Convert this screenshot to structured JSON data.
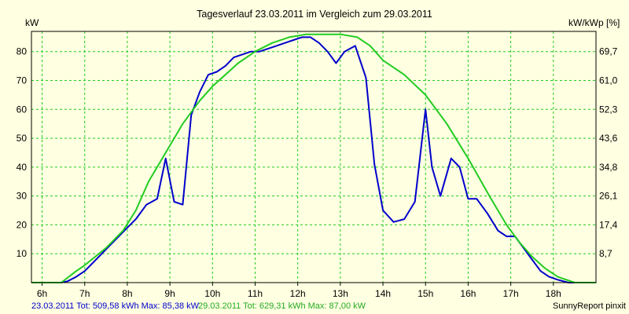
{
  "chart_data": {
    "type": "line",
    "title": "Tagesverlauf 23.03.2011 im Vergleich zum 29.03.2011",
    "ylabel_left": "kW",
    "ylabel_right": "kW/kWp [%]",
    "xlim": [
      5.75,
      19.0
    ],
    "ylim": [
      0,
      87
    ],
    "x_ticks": [
      6,
      7,
      8,
      9,
      10,
      11,
      12,
      13,
      14,
      15,
      16,
      17,
      18
    ],
    "x_tick_labels": [
      "6h",
      "7h",
      "8h",
      "9h",
      "10h",
      "11h",
      "12h",
      "13h",
      "14h",
      "15h",
      "16h",
      "17h",
      "18h"
    ],
    "y_ticks_left": [
      10,
      20,
      30,
      40,
      50,
      60,
      70,
      80
    ],
    "y_tick_labels_left": [
      "10",
      "20",
      "30",
      "40",
      "50",
      "60",
      "70",
      "80"
    ],
    "y_ticks_right": [
      8.7,
      17.4,
      26.1,
      34.8,
      43.6,
      52.3,
      61.0,
      69.7
    ],
    "y_tick_labels_right": [
      "8,7",
      "17,4",
      "26,1",
      "34,8",
      "43,6",
      "52,3",
      "61,0",
      "69,7"
    ],
    "grid": true,
    "series": [
      {
        "name": "23.03.2011",
        "color": "#0000cc",
        "x": [
          5.75,
          6.45,
          6.6,
          6.8,
          7.0,
          7.2,
          7.4,
          7.6,
          7.8,
          8.0,
          8.2,
          8.45,
          8.7,
          8.9,
          9.1,
          9.3,
          9.5,
          9.7,
          9.9,
          10.1,
          10.3,
          10.5,
          10.7,
          10.9,
          11.1,
          11.3,
          11.5,
          11.7,
          11.9,
          12.1,
          12.3,
          12.5,
          12.7,
          12.9,
          13.1,
          13.35,
          13.6,
          13.8,
          14.0,
          14.25,
          14.5,
          14.75,
          15.0,
          15.15,
          15.35,
          15.6,
          15.8,
          16.0,
          16.2,
          16.45,
          16.7,
          16.9,
          17.1,
          17.3,
          17.5,
          17.7,
          17.9,
          18.1,
          18.35,
          18.6,
          19.0
        ],
        "values": [
          0,
          0,
          0.5,
          2,
          4,
          7,
          10,
          13,
          16,
          19,
          22,
          27,
          29,
          43,
          28,
          27,
          58,
          66,
          72,
          73,
          75,
          78,
          79,
          80,
          80,
          81,
          82,
          83,
          84,
          85,
          85,
          83,
          80,
          76,
          80,
          82,
          71,
          41,
          25,
          21,
          22,
          28,
          60,
          40,
          30,
          43,
          40,
          29,
          29,
          24,
          18,
          16,
          16,
          12,
          8,
          4,
          2,
          1,
          0,
          0,
          0
        ]
      },
      {
        "name": "29.03.2011",
        "color": "#22cc22",
        "x": [
          5.75,
          6.45,
          6.8,
          7.0,
          7.5,
          7.9,
          8.2,
          8.5,
          8.9,
          9.3,
          9.7,
          10.0,
          10.3,
          10.6,
          11.0,
          11.4,
          11.8,
          12.2,
          12.6,
          13.0,
          13.4,
          13.7,
          14.0,
          14.5,
          15.0,
          15.5,
          16.0,
          16.5,
          16.9,
          17.2,
          17.5,
          17.8,
          18.1,
          18.5,
          19.0
        ],
        "values": [
          0,
          0,
          4,
          6,
          12,
          18,
          25,
          35,
          45,
          55,
          63,
          68,
          72,
          76,
          80,
          83,
          85,
          86,
          86,
          86,
          85,
          82,
          77,
          72,
          65,
          55,
          43,
          30,
          20,
          14,
          9,
          5,
          2,
          0,
          0
        ]
      }
    ],
    "footer_left": "23.03.2011 Tot: 509,58 kWh Max: 85,38 kW",
    "footer_mid": "29.03.2011 Tot: 629,31 kWh Max: 87,00 kW",
    "footer_right": "SunnyReport pinxit"
  }
}
